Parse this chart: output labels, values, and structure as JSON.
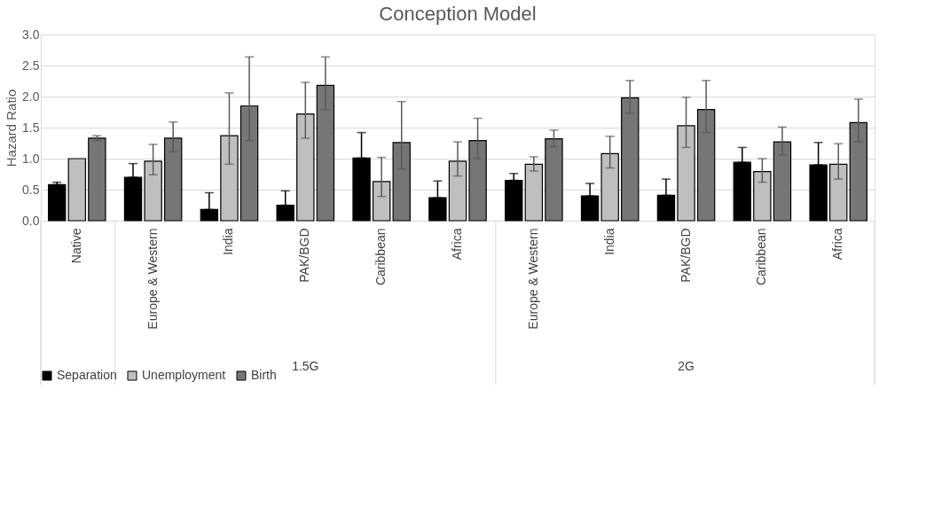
{
  "chart_data": {
    "type": "bar",
    "title": "Conception Model",
    "ylabel": "Hazard Ratio",
    "categories": [
      "Native",
      "Europe & Western",
      "India",
      "PAK/BGD",
      "Caribbean",
      "Africa",
      "Europe & Western",
      "India",
      "PAK/BGD",
      "Caribbean",
      "Africa"
    ],
    "annotations": [
      "1.5G",
      "2G"
    ],
    "series": [
      {
        "name": "Separation",
        "color": "#000000",
        "values": [
          0.58,
          0.7,
          0.18,
          0.25,
          1.01,
          0.37,
          0.65,
          0.4,
          0.41,
          0.94,
          0.9
        ],
        "errors": [
          [
            0.58,
            0.62
          ],
          [
            0.7,
            0.92
          ],
          [
            0.18,
            0.45
          ],
          [
            0.25,
            0.48
          ],
          [
            1.01,
            1.42
          ],
          [
            0.37,
            0.64
          ],
          [
            0.65,
            0.76
          ],
          [
            0.4,
            0.6
          ],
          [
            0.41,
            0.67
          ],
          [
            0.94,
            1.18
          ],
          [
            0.9,
            1.26
          ]
        ]
      },
      {
        "name": "Unemployment",
        "color": "#bfbfbf",
        "values": [
          1.0,
          0.96,
          1.37,
          1.72,
          0.63,
          0.96,
          0.91,
          1.08,
          1.53,
          0.79,
          0.91
        ],
        "errors": [
          null,
          [
            0.74,
            1.23
          ],
          [
            0.91,
            2.06
          ],
          [
            1.33,
            2.23
          ],
          [
            0.39,
            1.02
          ],
          [
            0.72,
            1.27
          ],
          [
            0.8,
            1.03
          ],
          [
            0.85,
            1.36
          ],
          [
            1.18,
            1.99
          ],
          [
            0.62,
            1.0
          ],
          [
            0.67,
            1.24
          ]
        ]
      },
      {
        "name": "Birth",
        "color": "#767676",
        "values": [
          1.33,
          1.33,
          1.85,
          2.18,
          1.26,
          1.29,
          1.32,
          1.98,
          1.79,
          1.27,
          1.58
        ],
        "errors": [
          [
            1.29,
            1.37
          ],
          [
            1.11,
            1.59
          ],
          [
            1.29,
            2.64
          ],
          [
            1.79,
            2.64
          ],
          [
            0.83,
            1.92
          ],
          [
            1.0,
            1.65
          ],
          [
            1.19,
            1.46
          ],
          [
            1.73,
            2.26
          ],
          [
            1.42,
            2.26
          ],
          [
            1.06,
            1.51
          ],
          [
            1.27,
            1.96
          ]
        ]
      }
    ],
    "ylim": [
      0,
      3.0
    ],
    "yticks": [
      {
        "value": 0,
        "label": "0.0"
      },
      {
        "value": 0.5,
        "label": "0.5"
      },
      {
        "value": 1.0,
        "label": "1.0"
      },
      {
        "value": 1.5,
        "label": "1.5"
      },
      {
        "value": 2.0,
        "label": "2.0"
      },
      {
        "value": 2.5,
        "label": "2.5"
      },
      {
        "value": 3.0,
        "label": "3.0"
      }
    ],
    "grid": "y",
    "legend": "bottom"
  }
}
